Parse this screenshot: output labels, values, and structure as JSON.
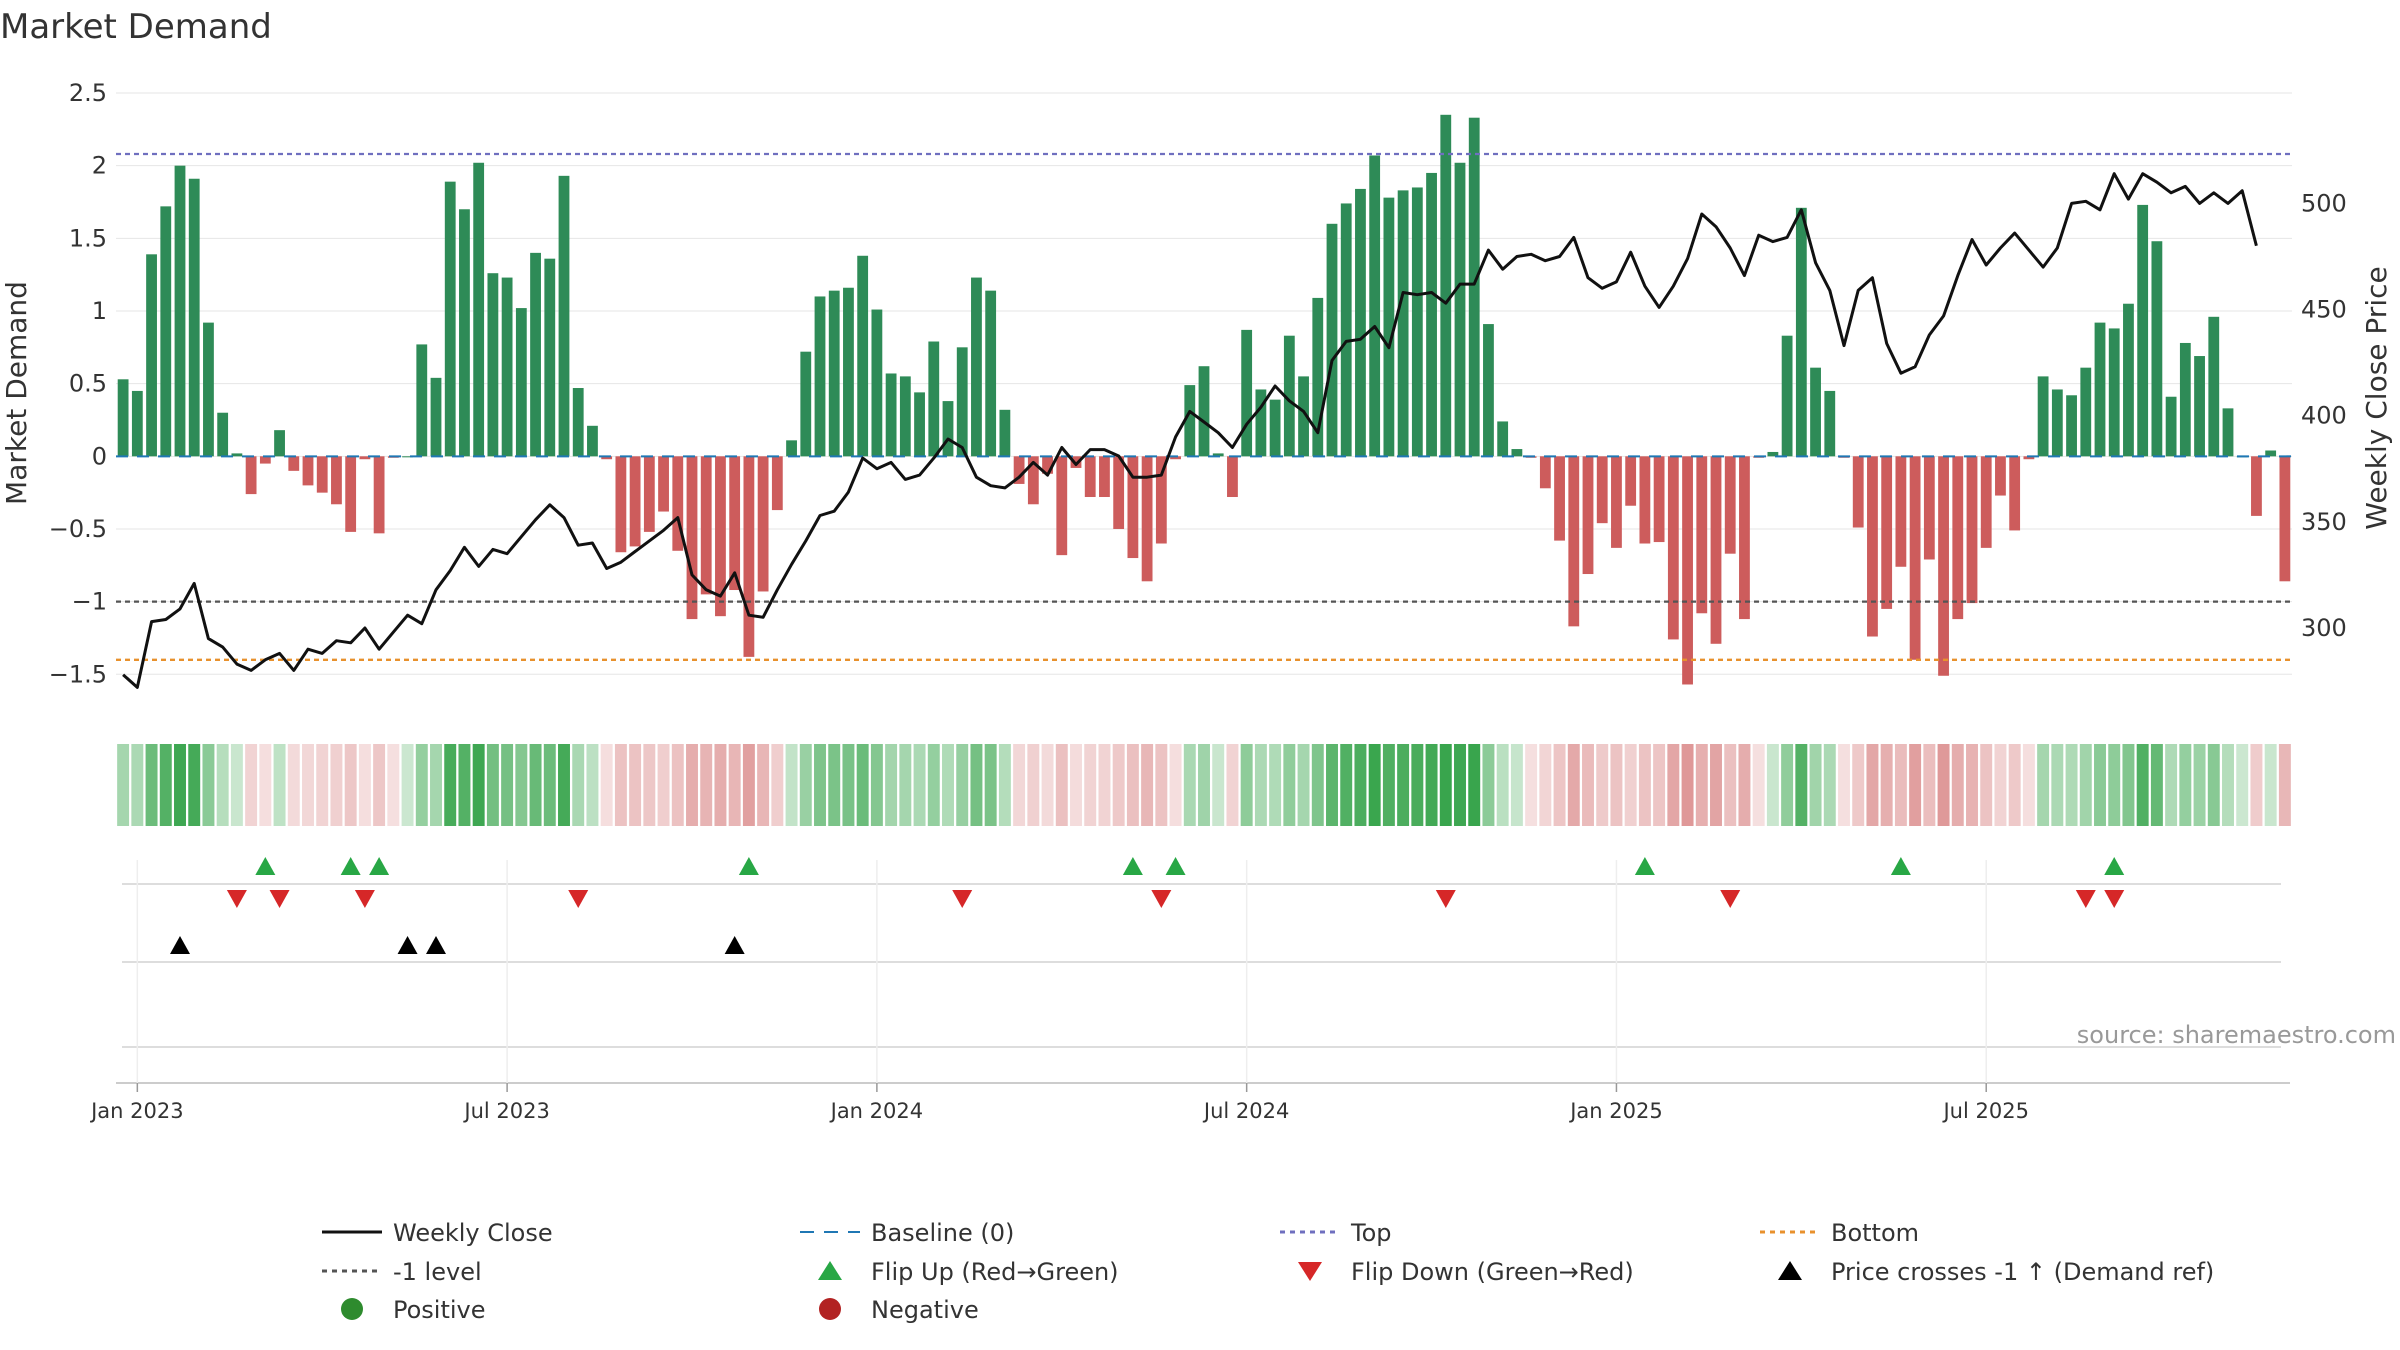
{
  "chart_data": {
    "type": "bar+line",
    "title": "Market Demand",
    "ylabel_left": "Market Demand",
    "ylabel_right": "Weekly Close Price",
    "ylim_left": [
      -1.78,
      2.5
    ],
    "ylim_right": [
      259,
      552
    ],
    "yticks_left": [
      2.5,
      2,
      1.5,
      1,
      0.5,
      0,
      -0.5,
      -1,
      -1.5
    ],
    "ytick_labels_left": [
      "2.5",
      "2",
      "1.5",
      "1",
      "0.5",
      "0",
      "−0.5",
      "−1",
      "−1.5"
    ],
    "yticks_right": [
      500,
      450,
      400,
      350,
      300
    ],
    "ytick_labels_right": [
      "500",
      "450",
      "400",
      "350",
      "300"
    ],
    "x_ticks": [
      "Jan 2023",
      "Jul 2023",
      "Jan 2024",
      "Jul 2024",
      "Jan 2025",
      "Jul 2025"
    ],
    "x_tick_weeks": [
      1,
      27,
      53,
      79,
      105,
      131
    ],
    "grid": true,
    "reference_lines": {
      "top": 2.08,
      "minus_one": -1,
      "bottom": -1.4,
      "baseline": 0
    },
    "weeks": 144,
    "market_demand": [
      0.53,
      0.45,
      1.39,
      1.72,
      2.0,
      1.91,
      0.92,
      0.3,
      0.02,
      -0.26,
      -0.05,
      0.18,
      -0.1,
      -0.2,
      -0.25,
      -0.33,
      -0.52,
      -0.02,
      -0.53,
      -0.01,
      0.0,
      0.77,
      0.54,
      1.89,
      1.7,
      2.02,
      1.26,
      1.23,
      1.02,
      1.4,
      1.36,
      1.93,
      0.47,
      0.21,
      -0.02,
      -0.66,
      -0.62,
      -0.52,
      -0.38,
      -0.65,
      -1.12,
      -0.95,
      -1.1,
      -0.92,
      -1.38,
      -0.93,
      -0.37,
      0.11,
      0.72,
      1.1,
      1.14,
      1.16,
      1.38,
      1.01,
      0.57,
      0.55,
      0.44,
      0.79,
      0.38,
      0.75,
      1.23,
      1.14,
      0.32,
      -0.19,
      -0.33,
      -0.12,
      -0.68,
      -0.08,
      -0.28,
      -0.28,
      -0.5,
      -0.7,
      -0.86,
      -0.6,
      -0.02,
      0.49,
      0.62,
      0.02,
      -0.28,
      0.87,
      0.46,
      0.39,
      0.83,
      0.55,
      1.09,
      1.6,
      1.74,
      1.84,
      2.07,
      1.78,
      1.83,
      1.85,
      1.95,
      2.35,
      2.02,
      2.33,
      0.91,
      0.24,
      0.05,
      -0.01,
      -0.22,
      -0.58,
      -1.17,
      -0.81,
      -0.46,
      -0.63,
      -0.34,
      -0.6,
      -0.59,
      -1.26,
      -1.57,
      -1.08,
      -1.29,
      -0.67,
      -1.12,
      -0.01,
      0.03,
      0.83,
      1.71,
      0.61,
      0.45,
      -0.01,
      -0.49,
      -1.24,
      -1.05,
      -0.76,
      -1.4,
      -0.71,
      -1.51,
      -1.12,
      -1.01,
      -0.63,
      -0.27,
      -0.51,
      -0.02,
      0.55,
      0.46,
      0.42,
      0.61,
      0.92,
      0.88,
      1.05,
      1.73,
      1.48,
      0.41,
      0.78
    ],
    "market_demand_tail": [
      0.69,
      0.96,
      0.33,
      0.0,
      -0.41,
      0.04,
      -0.86
    ],
    "weekly_close": [
      278,
      272,
      303,
      304,
      309,
      321,
      295,
      291,
      283,
      280,
      285,
      288,
      280,
      290,
      288,
      294,
      293,
      300,
      290,
      298,
      306,
      302,
      318,
      327,
      338,
      329,
      337,
      335,
      343,
      351,
      358,
      352,
      339,
      340,
      328,
      331,
      336,
      341,
      346,
      352,
      325,
      318,
      315,
      326,
      306,
      305,
      318,
      330,
      341,
      353,
      355,
      364,
      380,
      375,
      378,
      370,
      372,
      380,
      389,
      385,
      371,
      367,
      366,
      371,
      378,
      372,
      385,
      377,
      384,
      384,
      381,
      371,
      371,
      372,
      390,
      402,
      397,
      392,
      385,
      396,
      404,
      414,
      407,
      402,
      392,
      426,
      435,
      436,
      442,
      432,
      458,
      457,
      458,
      453,
      462,
      462,
      478,
      469,
      475,
      476,
      473,
      475,
      484,
      465,
      460,
      463,
      477,
      461,
      451,
      461,
      474,
      495,
      489,
      479,
      466,
      485,
      482,
      484,
      497,
      472,
      459,
      433,
      459,
      465,
      434,
      420,
      423,
      438,
      447,
      466,
      483,
      471,
      479,
      486,
      478,
      470,
      479,
      500,
      501,
      497,
      514,
      502,
      514,
      510
    ],
    "weekly_close_tail": [
      505,
      508,
      500,
      505,
      500,
      506,
      480
    ],
    "flip_up_weeks": [
      10,
      16,
      18,
      44,
      71,
      74,
      107,
      125,
      140
    ],
    "flip_down_weeks": [
      8,
      11,
      17,
      32,
      59,
      73,
      93,
      113,
      138,
      140
    ],
    "price_cross_weeks": [
      4,
      20,
      22,
      43
    ],
    "heat_strip": "demand-colored",
    "legend": [
      {
        "label": "Weekly Close",
        "key": "line",
        "color": "#111111"
      },
      {
        "label": "Baseline (0)",
        "key": "dashed",
        "color": "#1f77b4"
      },
      {
        "label": "Top",
        "key": "dotted",
        "color": "#6f6fbf"
      },
      {
        "label": "Bottom",
        "key": "dotted",
        "color": "#e8912d"
      },
      {
        "label": "-1 level",
        "key": "dotted",
        "color": "#555555"
      },
      {
        "label": "Flip Up (Red→Green)",
        "key": "tri-up",
        "color": "#28a745"
      },
      {
        "label": "Flip Down (Green→Red)",
        "key": "tri-down",
        "color": "#d62728"
      },
      {
        "label": "Price crosses -1 ↑ (Demand ref)",
        "key": "tri-up",
        "color": "#000000"
      },
      {
        "label": "Positive",
        "key": "dot",
        "color": "#2e8b2e"
      },
      {
        "label": "Negative",
        "key": "dot",
        "color": "#b22222"
      }
    ],
    "source": "source: sharemaestro.com"
  },
  "colors": {
    "positive_bar": "#2e8b57",
    "negative_bar": "#cd5c5c",
    "grid": "#e6e6e6",
    "axis": "#cccccc"
  }
}
